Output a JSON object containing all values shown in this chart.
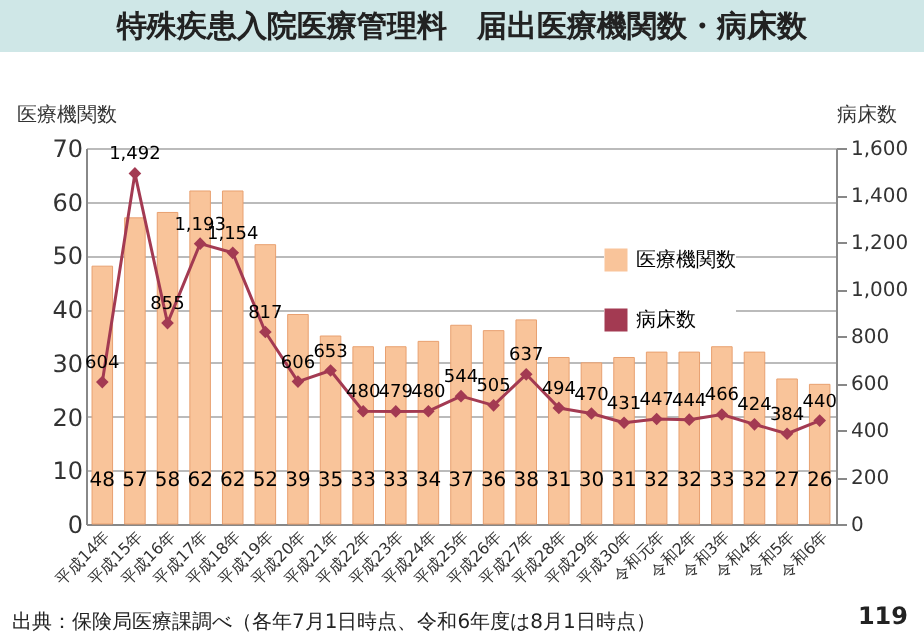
{
  "chart_data": {
    "type": "bar",
    "title": "特殊疾患入院医療管理料　届出医療機関数・病床数",
    "ylabel": "医療機関数",
    "y2label": "病床数",
    "categories": [
      "平成14年",
      "平成15年",
      "平成16年",
      "平成17年",
      "平成18年",
      "平成19年",
      "平成20年",
      "平成21年",
      "平成22年",
      "平成23年",
      "平成24年",
      "平成25年",
      "平成26年",
      "平成27年",
      "平成28年",
      "平成29年",
      "平成30年",
      "令和元年",
      "令和2年",
      "令和3年",
      "令和4年",
      "令和5年",
      "令和6年"
    ],
    "series": [
      {
        "name": "医療機関数",
        "type": "bar",
        "color": "#f9c49a",
        "values": [
          48,
          57,
          58,
          62,
          62,
          52,
          39,
          35,
          33,
          33,
          34,
          37,
          36,
          38,
          31,
          30,
          31,
          32,
          32,
          33,
          32,
          27,
          26
        ]
      },
      {
        "name": "病床数",
        "type": "line",
        "axis": "y2",
        "color": "#a33a52",
        "values": [
          604,
          1492,
          855,
          1193,
          1154,
          817,
          606,
          653,
          480,
          479,
          480,
          544,
          505,
          637,
          494,
          470,
          431,
          447,
          444,
          466,
          424,
          384,
          440
        ],
        "value_labels": [
          "604",
          "1,492",
          "855",
          "1,193",
          "1,154",
          "817",
          "606",
          "653",
          "480",
          "479",
          "480",
          "544",
          "505",
          "637",
          "494",
          "470",
          "431",
          "447",
          "444",
          "466",
          "424",
          "384",
          "440"
        ]
      }
    ],
    "ylim": [
      0,
      70
    ],
    "yticks": [
      0,
      10,
      20,
      30,
      40,
      50,
      60,
      70
    ],
    "y2lim": [
      0,
      1600
    ],
    "y2ticks": [
      0,
      {
        "value": 200,
        "label": "200"
      },
      {
        "value": 400,
        "label": "400"
      },
      {
        "value": 600,
        "label": "600"
      },
      {
        "value": 800,
        "label": "800"
      },
      {
        "value": 1000,
        "label": "1,000"
      },
      {
        "value": 1200,
        "label": "1,200"
      },
      {
        "value": 1400,
        "label": "1,400"
      },
      {
        "value": 1600,
        "label": "1,600"
      }
    ],
    "grid": "y",
    "legend": "top right",
    "marker": "diamond",
    "data_labels": true,
    "annotations": [
      "出典：保険局医療課調べ（各年7月1日時点、令和6年度は8月1日時点）",
      "119"
    ]
  }
}
